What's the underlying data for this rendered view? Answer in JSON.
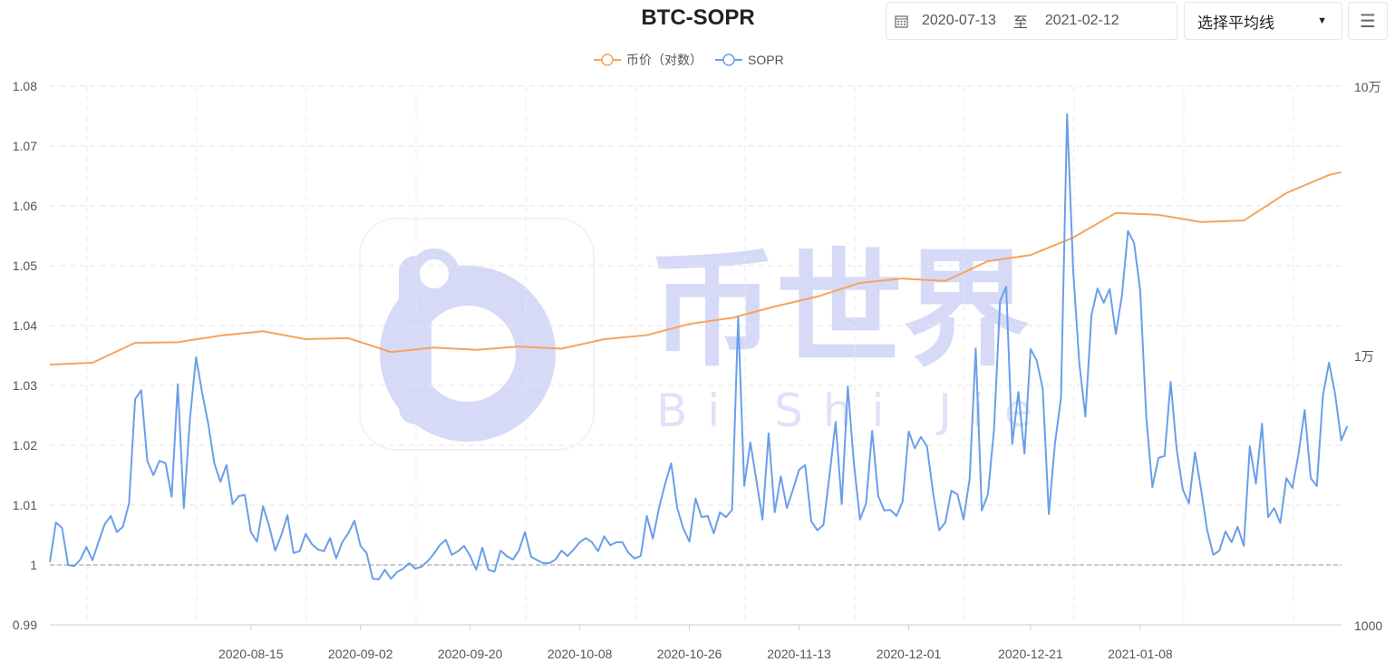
{
  "header": {
    "title": "BTC-SOPR",
    "date_start": "2020-07-13",
    "date_sep": "至",
    "date_end": "2021-02-12",
    "ma_select": "选择平均线",
    "menu_icon": "hamburger-menu-icon",
    "calendar_icon": "calendar-icon"
  },
  "watermark": {
    "text_cn": "币世界",
    "text_en": "Bi Shi Jie .com"
  },
  "chart_data": {
    "type": "line",
    "title": "BTC-SOPR",
    "legend": [
      "币价（对数）",
      "SOPR"
    ],
    "legend_placement": "top-center",
    "colors": {
      "price": "#f7a35c",
      "sopr": "#6a9fe8"
    },
    "x_ticks": [
      "2020-08-15",
      "2020-09-02",
      "2020-09-20",
      "2020-10-08",
      "2020-10-26",
      "2020-11-13",
      "2020-12-01",
      "2020-12-21",
      "2021-01-08"
    ],
    "y_left": {
      "ylim": [
        0.99,
        1.08
      ],
      "ticks": [
        "0.99",
        "1",
        "1.01",
        "1.02",
        "1.03",
        "1.04",
        "1.05",
        "1.06",
        "1.07",
        "1.08"
      ]
    },
    "y_right": {
      "scale": "log",
      "ylim": [
        1000,
        100000
      ],
      "ticks": [
        "1000",
        "1万",
        "10万"
      ]
    },
    "reference_line": 1,
    "grid": true,
    "sopr": {
      "name": "SOPR",
      "start": "2020-07-13",
      "values": [
        1.0005,
        1.0071,
        1.0062,
        1.0,
        0.9998,
        1.0009,
        1.003,
        1.0008,
        1.0039,
        1.0068,
        1.0082,
        1.0055,
        1.0064,
        1.0103,
        1.0277,
        1.0292,
        1.0174,
        1.015,
        1.0174,
        1.017,
        1.0114,
        1.0302,
        1.0095,
        1.0244,
        1.0347,
        1.0288,
        1.0236,
        1.017,
        1.0139,
        1.0167,
        1.0102,
        1.0115,
        1.0117,
        1.0055,
        1.0039,
        1.0098,
        1.0065,
        1.0024,
        1.005,
        1.0083,
        1.002,
        1.0023,
        1.0052,
        1.0035,
        1.0026,
        1.0023,
        1.0045,
        1.0011,
        1.0038,
        1.0053,
        1.0074,
        1.0032,
        1.002,
        0.9977,
        0.9976,
        0.9992,
        0.9977,
        0.9988,
        0.9994,
        1.0003,
        0.9994,
        0.9997,
        1.0006,
        1.0018,
        1.0033,
        1.0042,
        1.0017,
        1.0023,
        1.0032,
        1.0015,
        0.9992,
        1.0029,
        0.9992,
        0.9989,
        1.0024,
        1.0015,
        1.0009,
        1.0024,
        1.0055,
        1.0014,
        1.0008,
        1.0003,
        1.0003,
        1.0009,
        1.0024,
        1.0015,
        1.0026,
        1.0038,
        1.0045,
        1.0038,
        1.0023,
        1.0048,
        1.0033,
        1.0038,
        1.0038,
        1.002,
        1.0011,
        1.0015,
        1.0082,
        1.0044,
        1.0095,
        1.0135,
        1.017,
        1.0095,
        1.0061,
        1.0039,
        1.0111,
        1.008,
        1.0082,
        1.0053,
        1.0088,
        1.008,
        1.0092,
        1.0414,
        1.0132,
        1.0205,
        1.0141,
        1.0076,
        1.022,
        1.0088,
        1.0148,
        1.0095,
        1.0126,
        1.0159,
        1.0167,
        1.0073,
        1.0058,
        1.0067,
        1.015,
        1.0239,
        1.0102,
        1.0298,
        1.017,
        1.0076,
        1.0103,
        1.0224,
        1.0115,
        1.0091,
        1.0092,
        1.0082,
        1.0106,
        1.0223,
        1.0195,
        1.0214,
        1.0198,
        1.0121,
        1.0058,
        1.0071,
        1.0124,
        1.0118,
        1.0076,
        1.0144,
        1.0362,
        1.0091,
        1.0118,
        1.0226,
        1.0441,
        1.0465,
        1.0202,
        1.0289,
        1.0186,
        1.0361,
        1.0342,
        1.0295,
        1.0085,
        1.0202,
        1.028,
        1.0753,
        1.0492,
        1.0338,
        1.0248,
        1.0417,
        1.0462,
        1.0438,
        1.0461,
        1.0386,
        1.045,
        1.0558,
        1.0538,
        1.0459,
        1.0247,
        1.013,
        1.0179,
        1.0182,
        1.0306,
        1.0192,
        1.0126,
        1.0103,
        1.0188,
        1.0126,
        1.0058,
        1.0017,
        1.0024,
        1.0056,
        1.0038,
        1.0064,
        1.0032,
        1.0198,
        1.0136,
        1.0236,
        1.008,
        1.0095,
        1.007,
        1.0145,
        1.0129,
        1.0186,
        1.0259,
        1.0145,
        1.0132,
        1.0283,
        1.0338,
        1.0286,
        1.0208,
        1.0232
      ]
    },
    "price": {
      "name": "币价（对数）",
      "points": [
        [
          "2020-07-13",
          9250
        ],
        [
          "2020-07-20",
          9400
        ],
        [
          "2020-07-27",
          11150
        ],
        [
          "2020-08-03",
          11200
        ],
        [
          "2020-08-10",
          11860
        ],
        [
          "2020-08-17",
          12300
        ],
        [
          "2020-08-24",
          11500
        ],
        [
          "2020-08-31",
          11600
        ],
        [
          "2020-09-07",
          10300
        ],
        [
          "2020-09-14",
          10700
        ],
        [
          "2020-09-21",
          10500
        ],
        [
          "2020-09-28",
          10800
        ],
        [
          "2020-10-05",
          10600
        ],
        [
          "2020-10-12",
          11500
        ],
        [
          "2020-10-19",
          11900
        ],
        [
          "2020-10-26",
          13100
        ],
        [
          "2020-11-02",
          13800
        ],
        [
          "2020-11-09",
          15200
        ],
        [
          "2020-11-16",
          16550
        ],
        [
          "2020-11-23",
          18600
        ],
        [
          "2020-11-30",
          19300
        ],
        [
          "2020-12-07",
          18900
        ],
        [
          "2020-12-14",
          22400
        ],
        [
          "2020-12-21",
          23600
        ],
        [
          "2020-12-28",
          27400
        ],
        [
          "2021-01-04",
          33800
        ],
        [
          "2021-01-11",
          33300
        ],
        [
          "2021-01-18",
          31300
        ],
        [
          "2021-01-25",
          31700
        ],
        [
          "2021-02-01",
          40100
        ],
        [
          "2021-02-08",
          46800
        ],
        [
          "2021-02-10",
          47900
        ]
      ]
    }
  }
}
